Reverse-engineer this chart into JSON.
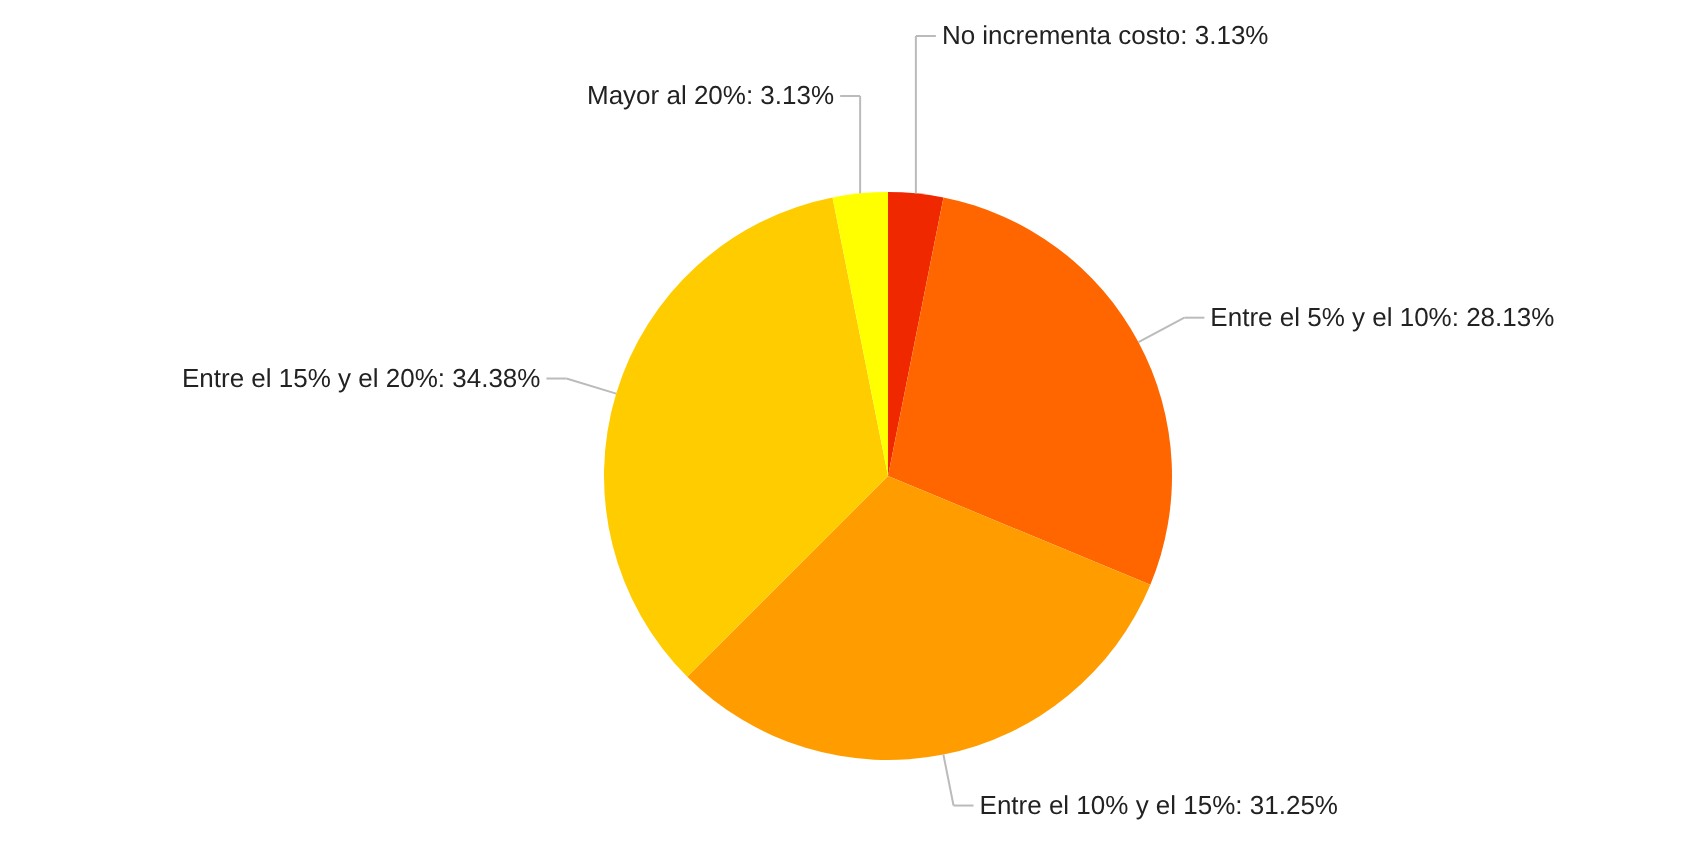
{
  "chart_data": {
    "type": "pie",
    "categories": [
      "No incrementa costo",
      "Entre el 5% y el 10%",
      "Entre el 10% y el 15%",
      "Entre el 15% y el 20%",
      "Mayor al 20%"
    ],
    "values": [
      3.13,
      28.13,
      31.25,
      34.38,
      3.13
    ],
    "value_labels": [
      "3.13%",
      "28.13%",
      "31.25%",
      "34.38%",
      "3.13%"
    ],
    "colors": [
      "#f02800",
      "#ff6600",
      "#ff9d00",
      "#ffcc00",
      "#ffff00"
    ]
  }
}
